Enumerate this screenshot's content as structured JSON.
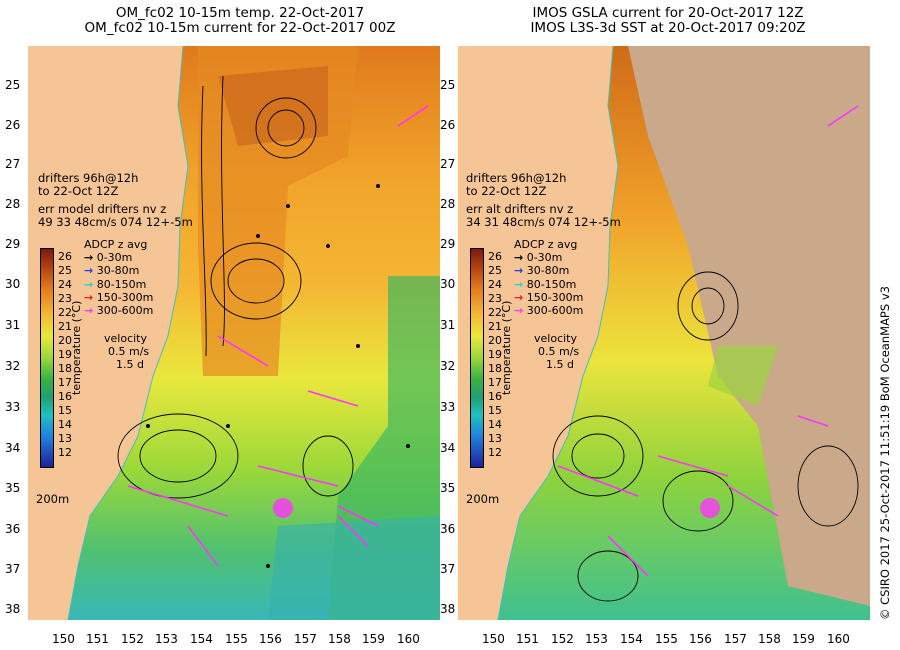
{
  "left_panel": {
    "title_line1": "OM_fc02 10-15m temp. 22-Oct-2017",
    "title_line2": "OM_fc02 10-15m current for 22-Oct-2017 00Z",
    "drifters_line1": "drifters 96h@12h",
    "drifters_line2": "to 22-Oct 12Z",
    "err_line1": "err model drifters nv z",
    "err_line2": "49 33 48cm/s 074 12+-5m"
  },
  "right_panel": {
    "title_line1": "IMOS GSLA current for 20-Oct-2017 12Z",
    "title_line2": "IMOS L3S-3d SST at 20-Oct-2017 09:20Z",
    "drifters_line1": "drifters 96h@12h",
    "drifters_line2": "to 22-Oct 12Z",
    "err_line1": "err alt drifters nv z",
    "err_line2": "34 31 48cm/s 074 12+-5m"
  },
  "adcp_legend": {
    "title": "ADCP z avg",
    "items": [
      {
        "label": "0-30m",
        "color": "#000000"
      },
      {
        "label": "30-80m",
        "color": "#1f3fe0"
      },
      {
        "label": "80-150m",
        "color": "#20d0e0"
      },
      {
        "label": "150-300m",
        "color": "#e02020"
      },
      {
        "label": "300-600m",
        "color": "#ff33ff"
      }
    ]
  },
  "velocity_legend": {
    "title": "velocity",
    "line1": "0.5 m/s",
    "line2": "1.5 d"
  },
  "colorbar": {
    "label": "temperature (°C)",
    "ticks": [
      "26",
      "25",
      "24",
      "23",
      "22",
      "21",
      "20",
      "19",
      "18",
      "17",
      "16",
      "15",
      "14",
      "13",
      "12"
    ]
  },
  "isobath_label": "200m",
  "lat_ticks": [
    "25",
    "26",
    "27",
    "28",
    "29",
    "30",
    "31",
    "32",
    "33",
    "34",
    "35",
    "36",
    "37",
    "38"
  ],
  "lon_ticks": [
    "150",
    "151",
    "152",
    "153",
    "154",
    "155",
    "156",
    "157",
    "158",
    "159",
    "160"
  ],
  "credit": "© CSIRO 2017  25-Oct-2017 11:51:19 BoM OceanMAPS v3",
  "colors": {
    "land": "#f6c596",
    "nodata": "#c9a98a",
    "drifter": "#ff33ff"
  }
}
